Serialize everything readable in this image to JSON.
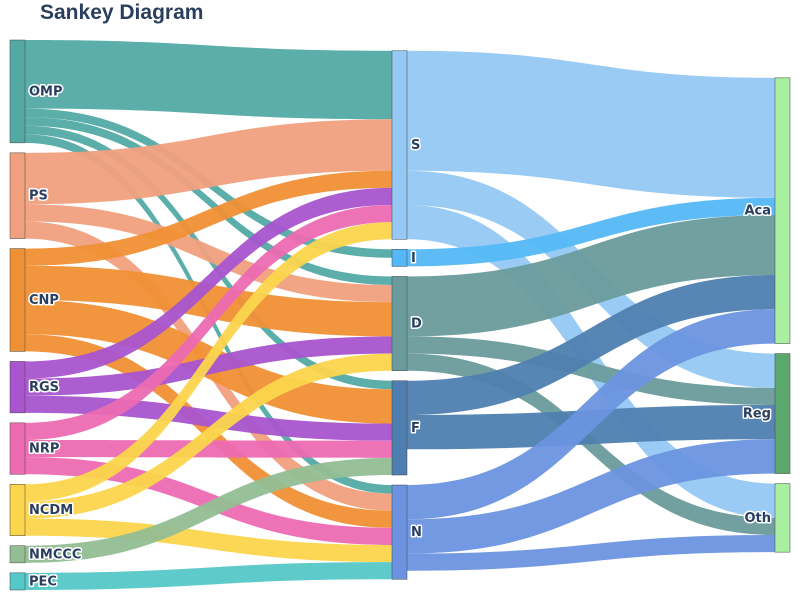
{
  "title": "Sankey Diagram",
  "nodes": [
    {
      "id": "OMP",
      "label": "OMP",
      "color": "#53aaa5"
    },
    {
      "id": "PS",
      "label": "PS",
      "color": "#f0a07e"
    },
    {
      "id": "CNP",
      "label": "CNP",
      "color": "#f09035"
    },
    {
      "id": "RGS",
      "label": "RGS",
      "color": "#a855cf"
    },
    {
      "id": "NRP",
      "label": "NRP",
      "color": "#ec6ab2"
    },
    {
      "id": "NCDM",
      "label": "NCDM",
      "color": "#fbd54c"
    },
    {
      "id": "NMCCC",
      "label": "NMCCC",
      "color": "#93be93"
    },
    {
      "id": "PEC",
      "label": "PEC",
      "color": "#55c7c7"
    },
    {
      "id": "S",
      "label": "S",
      "color": "#95c8f3"
    },
    {
      "id": "I",
      "label": "I",
      "color": "#54b8f6"
    },
    {
      "id": "D",
      "label": "D",
      "color": "#6a9b9c"
    },
    {
      "id": "F",
      "label": "F",
      "color": "#4f7fb0"
    },
    {
      "id": "N",
      "label": "N",
      "color": "#6b93e0"
    },
    {
      "id": "Aca",
      "label": "Aca",
      "color": "#a8f0a0"
    },
    {
      "id": "Reg",
      "label": "Reg",
      "color": "#5aa86e"
    },
    {
      "id": "Oth",
      "label": "Oth",
      "color": "#a8f0a0"
    }
  ],
  "links": [
    {
      "source": "OMP",
      "target": "S",
      "value": 4.0
    },
    {
      "source": "OMP",
      "target": "I",
      "value": 0.5
    },
    {
      "source": "OMP",
      "target": "D",
      "value": 0.5
    },
    {
      "source": "OMP",
      "target": "F",
      "value": 0.5
    },
    {
      "source": "OMP",
      "target": "N",
      "value": 0.5
    },
    {
      "source": "PS",
      "target": "S",
      "value": 3.0
    },
    {
      "source": "PS",
      "target": "D",
      "value": 1.0
    },
    {
      "source": "PS",
      "target": "N",
      "value": 1.0
    },
    {
      "source": "CNP",
      "target": "S",
      "value": 1.0
    },
    {
      "source": "CNP",
      "target": "D",
      "value": 2.0
    },
    {
      "source": "CNP",
      "target": "F",
      "value": 2.0
    },
    {
      "source": "CNP",
      "target": "N",
      "value": 1.0
    },
    {
      "source": "RGS",
      "target": "S",
      "value": 1.0
    },
    {
      "source": "RGS",
      "target": "D",
      "value": 1.0
    },
    {
      "source": "RGS",
      "target": "F",
      "value": 1.0
    },
    {
      "source": "NRP",
      "target": "S",
      "value": 1.0
    },
    {
      "source": "NRP",
      "target": "F",
      "value": 1.0
    },
    {
      "source": "NRP",
      "target": "N",
      "value": 1.0
    },
    {
      "source": "NCDM",
      "target": "S",
      "value": 1.0
    },
    {
      "source": "NCDM",
      "target": "D",
      "value": 1.0
    },
    {
      "source": "NCDM",
      "target": "N",
      "value": 1.0
    },
    {
      "source": "NMCCC",
      "target": "F",
      "value": 1.0
    },
    {
      "source": "PEC",
      "target": "N",
      "value": 1.0
    },
    {
      "source": "S",
      "target": "Aca",
      "value": 7.0
    },
    {
      "source": "S",
      "target": "Reg",
      "value": 2.0
    },
    {
      "source": "S",
      "target": "Oth",
      "value": 2.0
    },
    {
      "source": "I",
      "target": "Aca",
      "value": 1.0
    },
    {
      "source": "D",
      "target": "Aca",
      "value": 3.5
    },
    {
      "source": "D",
      "target": "Reg",
      "value": 1.0
    },
    {
      "source": "D",
      "target": "Oth",
      "value": 1.0
    },
    {
      "source": "F",
      "target": "Aca",
      "value": 2.0
    },
    {
      "source": "F",
      "target": "Reg",
      "value": 2.0
    },
    {
      "source": "N",
      "target": "Aca",
      "value": 2.0
    },
    {
      "source": "N",
      "target": "Reg",
      "value": 2.0
    },
    {
      "source": "N",
      "target": "Oth",
      "value": 1.0
    }
  ]
}
